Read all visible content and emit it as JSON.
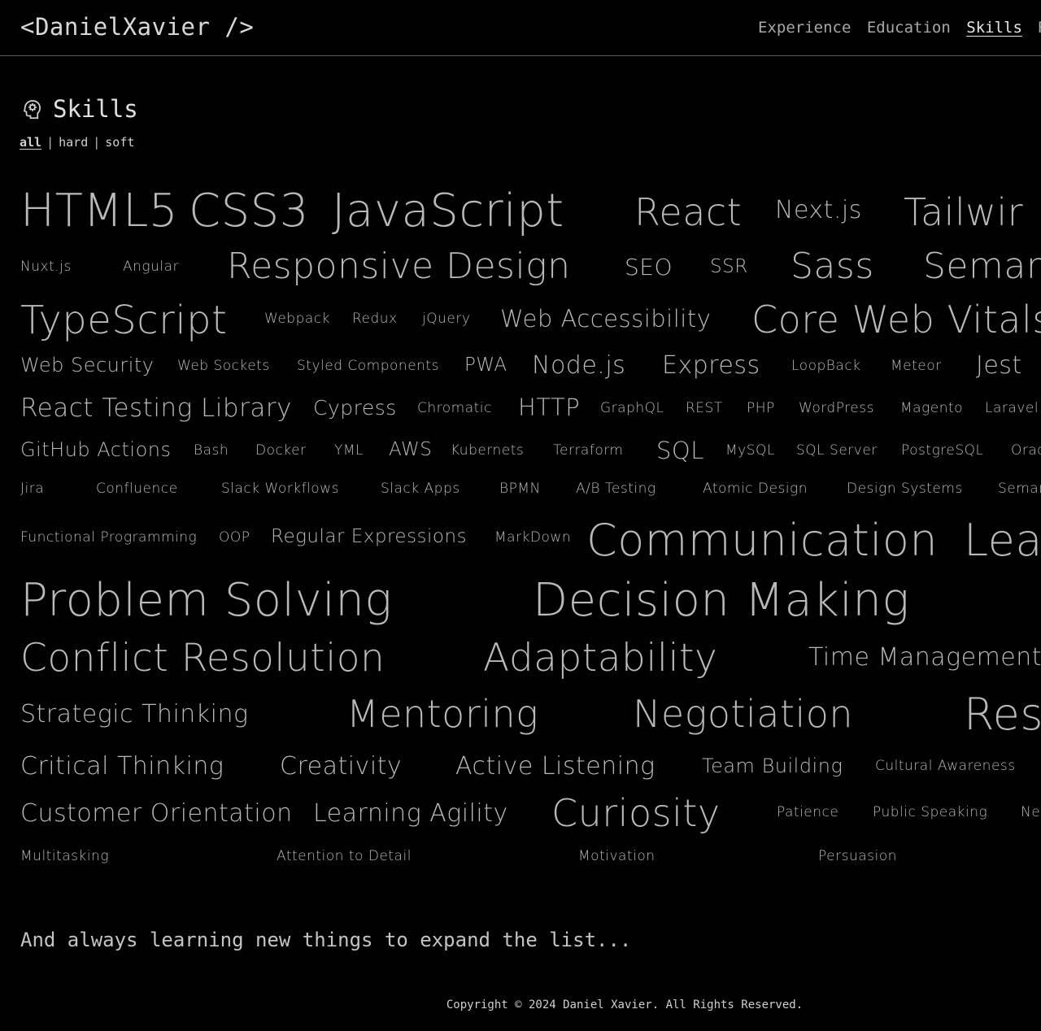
{
  "header": {
    "logo": "<DanielXavier />",
    "nav": [
      "Experience",
      "Education",
      "Skills",
      "R"
    ],
    "active_nav": "Skills"
  },
  "section": {
    "title": "Skills",
    "icon": "head-gear-icon"
  },
  "filters": {
    "all": "all",
    "hard": "hard",
    "soft": "soft",
    "separator": "|",
    "active": "all"
  },
  "skills": [
    "HTML5",
    "CSS3",
    "JavaScript",
    "React",
    "Next.js",
    "Tailwir",
    "Nuxt.js",
    "Angular",
    "Responsive Design",
    "SEO",
    "SSR",
    "Sass",
    "Semant",
    "TypeScript",
    "Webpack",
    "Redux",
    "jQuery",
    "Web Accessibility",
    "Core Web Vitals",
    "Web Security",
    "Web Sockets",
    "Styled Components",
    "PWA",
    "Node.js",
    "Express",
    "LoopBack",
    "Meteor",
    "Jest",
    "React Testing Library",
    "Cypress",
    "Chromatic",
    "HTTP",
    "GraphQL",
    "REST",
    "PHP",
    "WordPress",
    "Magento",
    "Laravel",
    "GitHub Actions",
    "Bash",
    "Docker",
    "YML",
    "AWS",
    "Kubernets",
    "Terraform",
    "SQL",
    "MySQL",
    "SQL Server",
    "PostgreSQL",
    "Orac",
    "Jira",
    "Confluence",
    "Slack Workflows",
    "Slack Apps",
    "BPMN",
    "A/B Testing",
    "Atomic Design",
    "Design Systems",
    "Seman",
    "Functional Programming",
    "OOP",
    "Regular Expressions",
    "MarkDown",
    "Communication",
    "Lea",
    "Problem Solving",
    "Decision Making",
    "Conflict Resolution",
    "Adaptability",
    "Time Management",
    "Strategic Thinking",
    "Mentoring",
    "Negotiation",
    "Res",
    "Critical Thinking",
    "Creativity",
    "Active Listening",
    "Team Building",
    "Cultural Awareness",
    "Customer Orientation",
    "Learning Agility",
    "Curiosity",
    "Patience",
    "Public Speaking",
    "Net",
    "Multitasking",
    "Attention to Detail",
    "Motivation",
    "Persuasion"
  ],
  "outro": "And always learning new things to expand the list...",
  "footer": "Copyright © 2024 Daniel Xavier. All Rights Reserved."
}
